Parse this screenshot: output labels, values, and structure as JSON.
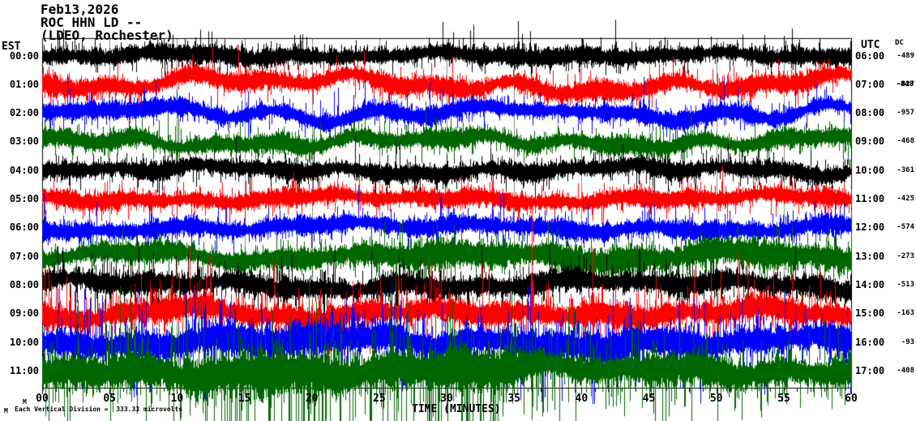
{
  "title": {
    "date": "Feb13,2026",
    "station": "ROC HHN LD --",
    "network": "(LDEO, Rochester)"
  },
  "left_axis": {
    "header": "EST"
  },
  "right_axis": {
    "header": "UTC",
    "dc_header": "DC"
  },
  "x_axis": {
    "label": "TIME (MINUTES)",
    "tick_labels": [
      "00",
      "05",
      "10",
      "15",
      "20",
      "25",
      "30",
      "35",
      "40",
      "45",
      "50",
      "55",
      "60"
    ]
  },
  "footer": {
    "note": "Each Vertical Division =  333.33 microvolts",
    "marker_left": "M",
    "marker_up": "M"
  },
  "chart_data": {
    "type": "line",
    "subtype": "helicorder-seismogram",
    "title": "ROC HHN LD -- (LDEO, Rochester) Feb13,2026",
    "xlabel": "TIME (MINUTES)",
    "x_range_minutes": [
      0,
      60
    ],
    "grid_interval_minutes": 5,
    "vertical_division_microvolts": 333.33,
    "trace_colors": {
      "black": "#000000",
      "red": "#ff0000",
      "blue": "#0000ff",
      "green": "#006600"
    },
    "rows": [
      {
        "est": "00:00",
        "utc": "06:00",
        "dc": "-489",
        "color": "black",
        "core": 11.5,
        "needle": 4.6,
        "needleP": 0.6,
        "spikeP": 0.01,
        "spikeLen": 22,
        "wander": 4.5,
        "downBias": 0.4,
        "bursts": [],
        "events": [
          [
            32,
            -45
          ],
          [
            35.3,
            -52
          ],
          [
            36.2,
            -40
          ],
          [
            42.5,
            -55
          ],
          [
            55.6,
            -45
          ]
        ],
        "zones": []
      },
      {
        "est": "01:00",
        "utc": "07:00",
        "dc": "-827",
        "dc2": "-848",
        "color": "red",
        "core": 12,
        "needle": 5,
        "needleP": 0.6,
        "spikeP": 0.01,
        "spikeLen": 25,
        "wander": 13,
        "downBias": 0.5,
        "bursts": [],
        "events": [],
        "zones": []
      },
      {
        "est": "02:00",
        "utc": "08:00",
        "dc": "-957",
        "color": "blue",
        "core": 11,
        "needle": 4.6,
        "needleP": 0.6,
        "spikeP": 0.008,
        "spikeLen": 25,
        "wander": 11,
        "downBias": 0.5,
        "bursts": [],
        "events": [],
        "zones": []
      },
      {
        "est": "03:00",
        "utc": "09:00",
        "dc": "-468",
        "color": "green",
        "core": 11.5,
        "needle": 4.6,
        "needleP": 0.6,
        "spikeP": 0.008,
        "spikeLen": 25,
        "wander": 9,
        "downBias": 0.5,
        "bursts": [],
        "events": [],
        "zones": []
      },
      {
        "est": "04:00",
        "utc": "10:00",
        "dc": "-361",
        "color": "black",
        "core": 11.5,
        "needle": 4.6,
        "needleP": 0.6,
        "spikeP": 0.008,
        "spikeLen": 25,
        "wander": 7,
        "downBias": 0.5,
        "bursts": [],
        "events": [],
        "zones": []
      },
      {
        "est": "05:00",
        "utc": "11:00",
        "dc": "-425",
        "color": "red",
        "core": 11,
        "needle": 4.6,
        "needleP": 0.6,
        "spikeP": 0.008,
        "spikeLen": 25,
        "wander": 6,
        "downBias": 0.5,
        "bursts": [],
        "events": [],
        "zones": []
      },
      {
        "est": "06:00",
        "utc": "12:00",
        "dc": "-574",
        "color": "blue",
        "core": 11.5,
        "needle": 4.6,
        "needleP": 0.6,
        "spikeP": 0.008,
        "spikeLen": 25,
        "wander": 7,
        "downBias": 0.5,
        "bursts": [],
        "events": [],
        "zones": []
      },
      {
        "est": "07:00",
        "utc": "13:00",
        "dc": "-273",
        "color": "green",
        "core": 13,
        "needle": 5.5,
        "needleP": 0.6,
        "spikeP": 0.012,
        "spikeLen": 30,
        "wander": 8,
        "downBias": 0.6,
        "bursts": [
          [
            23,
            60,
            1.35
          ]
        ],
        "events": [],
        "zones": [
          [
            20,
            35,
            0.012,
            30,
            60,
            1
          ]
        ]
      },
      {
        "est": "08:00",
        "utc": "14:00",
        "dc": "-513",
        "color": "black",
        "core": 13.5,
        "needle": 7,
        "needleP": 0.65,
        "spikeP": 0.012,
        "spikeLen": 30,
        "wander": 8,
        "downBias": 0.6,
        "bursts": [],
        "events": [],
        "zones": [
          [
            18,
            24,
            0.012,
            25,
            45,
            1
          ]
        ]
      },
      {
        "est": "09:00",
        "utc": "15:00",
        "dc": "-163",
        "color": "red",
        "core": 15,
        "needle": 9.5,
        "needleP": 0.65,
        "spikeP": 0.03,
        "spikeLen": 38,
        "wander": 9,
        "downBias": 0.5,
        "bursts": [],
        "events": [
          [
            36.3,
            -150
          ],
          [
            36.3,
            60
          ],
          [
            40.8,
            -85
          ],
          [
            40.8,
            45
          ]
        ],
        "zones": []
      },
      {
        "est": "10:00",
        "utc": "16:00",
        "dc": "-93",
        "color": "blue",
        "core": 19,
        "needle": 12,
        "needleP": 0.7,
        "spikeP": 0.03,
        "spikeLen": 45,
        "wander": 9,
        "downBias": 0.6,
        "bursts": [],
        "events": [
          [
            12,
            98
          ],
          [
            12,
            -40
          ],
          [
            26.8,
            70
          ],
          [
            42.2,
            85
          ],
          [
            59,
            55
          ]
        ],
        "zones": [
          [
            22,
            31,
            0.06,
            25,
            55,
            1
          ]
        ]
      },
      {
        "est": "11:00",
        "utc": "17:00",
        "dc": "-408",
        "color": "green",
        "core": 20,
        "needle": 13,
        "needleP": 0.7,
        "spikeP": 0.04,
        "spikeLen": 42,
        "wander": 9,
        "downBias": 0.65,
        "bursts": [
          [
            5,
            35,
            1.35
          ]
        ],
        "events": [
          [
            16.8,
            88
          ],
          [
            20.5,
            75
          ],
          [
            23,
            63
          ],
          [
            27,
            80
          ],
          [
            29,
            60
          ]
        ],
        "zones": [
          [
            13,
            34,
            0.15,
            40,
            90,
            1
          ]
        ]
      }
    ]
  }
}
